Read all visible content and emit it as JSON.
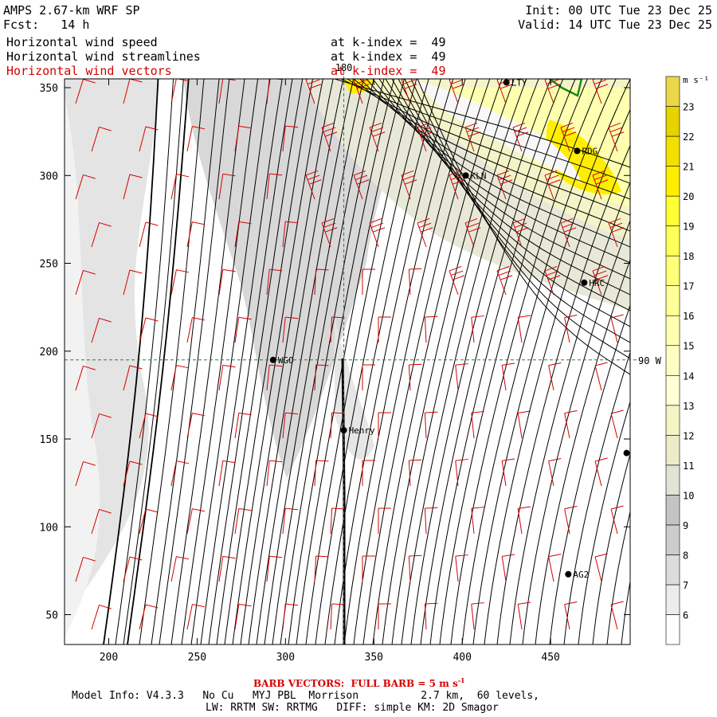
{
  "header": {
    "title": "AMPS 2.67-km WRF SP",
    "forecast": "Fcst:   14 h",
    "init": "Init: 00 UTC Tue 23 Dec 25",
    "valid": "Valid: 14 UTC Tue 23 Dec 25",
    "fields": [
      {
        "name": "Horizontal wind speed",
        "level": "at k-index =  49"
      },
      {
        "name": "Horizontal wind streamlines",
        "level": "at k-index =  49"
      },
      {
        "name": "Horizontal wind vectors",
        "level": "at k-index =  49"
      }
    ]
  },
  "colors": {
    "vectors": "#d40000",
    "streamlines": "#000000",
    "crosshair": "#2e7d32",
    "coast": "#1a8a1a"
  },
  "chart_data": {
    "type": "heatmap",
    "xlim": [
      175,
      495
    ],
    "ylim": [
      33,
      355
    ],
    "x_ticks": [
      200,
      250,
      300,
      350,
      400,
      450
    ],
    "y_ticks": [
      50,
      100,
      150,
      200,
      250,
      300,
      350
    ],
    "grid": false,
    "crosshair": {
      "x": 333,
      "y": 195,
      "x_label": "180",
      "y_label": "90 W"
    },
    "stations": [
      {
        "name": "LTY",
        "x": 425,
        "y": 353
      },
      {
        "name": "RDG",
        "x": 465,
        "y": 314
      },
      {
        "name": "KLN",
        "x": 402,
        "y": 300
      },
      {
        "name": "HRC",
        "x": 469,
        "y": 239
      },
      {
        "name": "WGO",
        "x": 293,
        "y": 195
      },
      {
        "name": "Henry",
        "x": 333,
        "y": 155
      },
      {
        "name": "AG2",
        "x": 460,
        "y": 73
      },
      {
        "name": "",
        "x": 493,
        "y": 142
      }
    ],
    "colorbar": {
      "units": "m s⁻¹",
      "levels": [
        6,
        7,
        8,
        9,
        10,
        11,
        12,
        13,
        14,
        15,
        16,
        17,
        18,
        19,
        20,
        21,
        22,
        23
      ],
      "colors": [
        "#ffffff",
        "#ececec",
        "#dcdcdc",
        "#cccccc",
        "#c4c4c4",
        "#e2e2d6",
        "#ececc8",
        "#f4f4c4",
        "#ffffd8",
        "#ffffc4",
        "#ffffb0",
        "#ffff98",
        "#ffff7a",
        "#ffff5a",
        "#ffff34",
        "#ffee00",
        "#f4e000",
        "#e6d300",
        "#e8d84a"
      ]
    }
  },
  "footer": {
    "barb_note": "BARB VECTORS:  FULL BARB = 5 m s",
    "barb_unit_exp": "-1",
    "model_info": "Model Info: V4.3.3   No Cu   MYJ PBL  Morrison          2.7 km,  60 levels,",
    "physics": "LW: RRTM SW: RRTMG   DIFF: simple KM: 2D Smagor"
  }
}
